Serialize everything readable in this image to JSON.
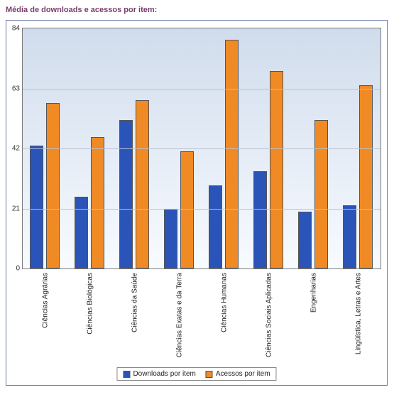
{
  "title": "Média de downloads e acessos por item:",
  "chart": {
    "type": "bar",
    "ylim": [
      0,
      84
    ],
    "yticks": [
      0,
      21,
      42,
      63,
      84
    ],
    "grid_color": "#b8c2d4",
    "border_color": "#6a7aa8",
    "plot_border_color": "#7a7a7a",
    "background_gradient_top": "#d0dcec",
    "background_gradient_bottom": "#f8fbff",
    "tick_fontsize": 10,
    "title_fontsize": 11,
    "title_color": "#7a3d6b",
    "categories": [
      "Ciências Agrárias",
      "Ciências Biológicas",
      "Ciências da Saúde",
      "Ciências Exatas e da Terra",
      "Ciências Humanas",
      "Ciências Sociais Aplicadas",
      "Engenharias",
      "Lingüística, Letras e Artes"
    ],
    "series": [
      {
        "name": "Downloads por item",
        "color": "#2a54b8",
        "values": [
          43,
          25,
          52,
          21,
          29,
          34,
          20,
          22
        ]
      },
      {
        "name": "Acessos por item",
        "color": "#f08a24",
        "values": [
          58,
          46,
          59,
          41,
          80,
          69,
          52,
          64
        ]
      }
    ],
    "legend": {
      "border_color": "#888888",
      "background": "#ffffff",
      "fontsize": 10
    }
  }
}
